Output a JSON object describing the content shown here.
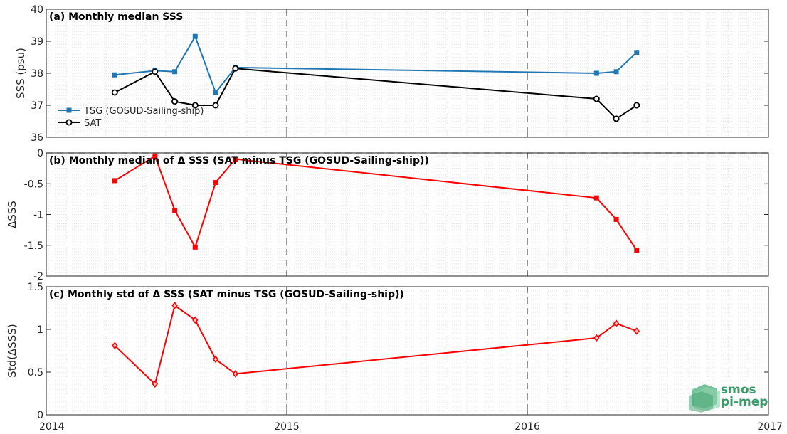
{
  "chart_data": [
    {
      "type": "line",
      "title": "(a) Monthly median SSS",
      "ylabel": "SSS (psu)",
      "xlim": [
        "2014-01-01",
        "2017-01-01"
      ],
      "ylim": [
        36,
        40
      ],
      "yticks": [
        36,
        37,
        38,
        39,
        40
      ],
      "grid": true,
      "legend_position": "bottom-left",
      "series": [
        {
          "name": "TSG (GOSUD-Sailing-ship)",
          "color": "#1f77b4",
          "marker": "square",
          "x": [
            "2014-04-15",
            "2014-06-15",
            "2014-07-15",
            "2014-08-15",
            "2014-09-15",
            "2014-10-15",
            "2016-04-15",
            "2016-05-15",
            "2016-06-15"
          ],
          "values": [
            37.95,
            38.08,
            38.05,
            39.15,
            37.4,
            38.18,
            38.0,
            38.05,
            38.65
          ]
        },
        {
          "name": "SAT",
          "color": "#000000",
          "marker": "circle",
          "x": [
            "2014-04-15",
            "2014-06-15",
            "2014-07-15",
            "2014-08-15",
            "2014-09-15",
            "2014-10-15",
            "2016-04-15",
            "2016-05-15",
            "2016-06-15"
          ],
          "values": [
            37.4,
            38.05,
            37.12,
            37.0,
            37.0,
            38.15,
            37.2,
            36.58,
            37.0
          ]
        }
      ]
    },
    {
      "type": "line",
      "title": "(b) Monthly median of Δ SSS (SAT minus TSG (GOSUD-Sailing-ship))",
      "ylabel": "ΔSSS",
      "xlim": [
        "2014-01-01",
        "2017-01-01"
      ],
      "ylim": [
        -2,
        0
      ],
      "yticks": [
        -2,
        -1.5,
        -1,
        -0.5,
        0
      ],
      "ytick_labels": [
        "-2",
        "-1.5",
        "-1",
        "-0.5",
        "0"
      ],
      "grid": true,
      "zero_line": true,
      "series": [
        {
          "color": "#ff0000",
          "marker": "square",
          "x": [
            "2014-04-15",
            "2014-06-15",
            "2014-07-15",
            "2014-08-15",
            "2014-09-15",
            "2014-10-15",
            "2016-04-15",
            "2016-05-15",
            "2016-06-15"
          ],
          "values": [
            -0.45,
            -0.05,
            -0.93,
            -1.53,
            -0.48,
            -0.1,
            -0.73,
            -1.08,
            -1.58
          ]
        }
      ]
    },
    {
      "type": "line",
      "title": "(c) Monthly std of Δ SSS (SAT minus TSG (GOSUD-Sailing-ship))",
      "ylabel": "Std(ΔSSS)",
      "xlim": [
        "2014-01-01",
        "2017-01-01"
      ],
      "ylim": [
        0,
        1.5
      ],
      "yticks": [
        0,
        0.5,
        1,
        1.5
      ],
      "ytick_labels": [
        "0",
        "0.5",
        "1",
        "1.5"
      ],
      "xtick_labels": [
        "2014",
        "2015",
        "2016",
        "2017"
      ],
      "grid": true,
      "series": [
        {
          "color": "#ff0000",
          "marker": "diamond",
          "x": [
            "2014-04-15",
            "2014-06-15",
            "2014-07-15",
            "2014-08-15",
            "2014-09-15",
            "2014-10-15",
            "2016-04-15",
            "2016-05-15",
            "2016-06-15"
          ],
          "values": [
            0.81,
            0.36,
            1.28,
            1.11,
            0.65,
            0.48,
            0.9,
            1.07,
            0.98
          ]
        }
      ]
    }
  ],
  "vertical_markers": [
    "2015-01-01",
    "2016-01-01"
  ],
  "logo": {
    "line1": "smos",
    "line2": "pi-mep"
  }
}
